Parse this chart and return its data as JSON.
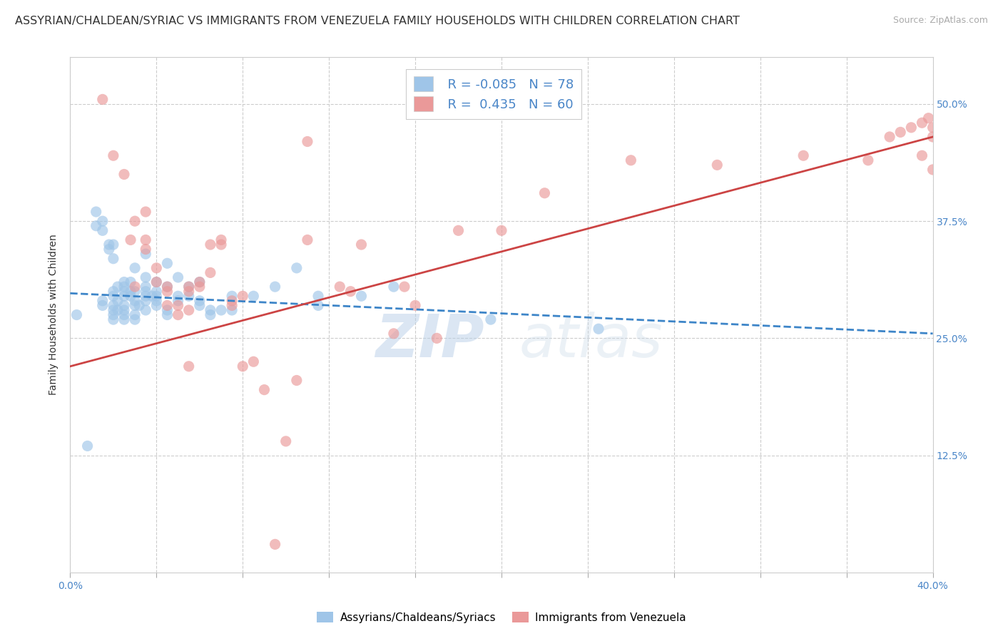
{
  "title": "ASSYRIAN/CHALDEAN/SYRIAC VS IMMIGRANTS FROM VENEZUELA FAMILY HOUSEHOLDS WITH CHILDREN CORRELATION CHART",
  "source": "Source: ZipAtlas.com",
  "ylabel": "Family Households with Children",
  "legend_blue_r": "R = -0.085",
  "legend_blue_n": "N = 78",
  "legend_pink_r": "R =  0.435",
  "legend_pink_n": "N = 60",
  "blue_color": "#9fc5e8",
  "pink_color": "#ea9999",
  "blue_line_color": "#3d85c8",
  "pink_line_color": "#cc4444",
  "watermark": "ZIPatlas",
  "blue_scatter": [
    [
      0.3,
      27.5
    ],
    [
      0.8,
      13.5
    ],
    [
      1.2,
      38.5
    ],
    [
      1.2,
      37.0
    ],
    [
      1.5,
      29.0
    ],
    [
      1.5,
      37.5
    ],
    [
      1.5,
      36.5
    ],
    [
      1.5,
      28.5
    ],
    [
      1.8,
      35.0
    ],
    [
      1.8,
      34.5
    ],
    [
      2.0,
      35.0
    ],
    [
      2.0,
      33.5
    ],
    [
      2.0,
      30.0
    ],
    [
      2.0,
      29.5
    ],
    [
      2.0,
      28.5
    ],
    [
      2.0,
      28.0
    ],
    [
      2.0,
      27.5
    ],
    [
      2.0,
      27.0
    ],
    [
      2.2,
      30.5
    ],
    [
      2.2,
      29.0
    ],
    [
      2.2,
      28.0
    ],
    [
      2.5,
      31.0
    ],
    [
      2.5,
      30.5
    ],
    [
      2.5,
      30.0
    ],
    [
      2.5,
      29.5
    ],
    [
      2.5,
      28.5
    ],
    [
      2.5,
      28.0
    ],
    [
      2.5,
      27.5
    ],
    [
      2.5,
      27.0
    ],
    [
      2.8,
      31.0
    ],
    [
      2.8,
      30.0
    ],
    [
      2.8,
      29.5
    ],
    [
      3.0,
      32.5
    ],
    [
      3.0,
      30.0
    ],
    [
      3.0,
      29.0
    ],
    [
      3.0,
      28.5
    ],
    [
      3.0,
      27.5
    ],
    [
      3.0,
      27.0
    ],
    [
      3.2,
      28.5
    ],
    [
      3.5,
      34.0
    ],
    [
      3.5,
      31.5
    ],
    [
      3.5,
      30.5
    ],
    [
      3.5,
      30.0
    ],
    [
      3.5,
      29.5
    ],
    [
      3.5,
      29.0
    ],
    [
      3.5,
      28.0
    ],
    [
      3.8,
      29.5
    ],
    [
      4.0,
      31.0
    ],
    [
      4.0,
      30.0
    ],
    [
      4.0,
      29.5
    ],
    [
      4.0,
      29.0
    ],
    [
      4.0,
      28.5
    ],
    [
      4.5,
      33.0
    ],
    [
      4.5,
      30.5
    ],
    [
      4.5,
      28.0
    ],
    [
      4.5,
      27.5
    ],
    [
      5.0,
      31.5
    ],
    [
      5.0,
      29.5
    ],
    [
      5.0,
      29.0
    ],
    [
      5.5,
      30.5
    ],
    [
      5.5,
      29.5
    ],
    [
      6.0,
      31.0
    ],
    [
      6.0,
      29.0
    ],
    [
      6.0,
      28.5
    ],
    [
      6.5,
      28.0
    ],
    [
      6.5,
      27.5
    ],
    [
      7.0,
      28.0
    ],
    [
      7.5,
      29.5
    ],
    [
      7.5,
      28.0
    ],
    [
      8.5,
      29.5
    ],
    [
      9.5,
      30.5
    ],
    [
      10.5,
      32.5
    ],
    [
      11.5,
      29.5
    ],
    [
      11.5,
      28.5
    ],
    [
      13.5,
      29.5
    ],
    [
      15.0,
      30.5
    ],
    [
      19.5,
      27.0
    ],
    [
      24.5,
      26.0
    ]
  ],
  "pink_scatter": [
    [
      1.5,
      50.5
    ],
    [
      2.0,
      44.5
    ],
    [
      2.5,
      42.5
    ],
    [
      2.8,
      35.5
    ],
    [
      3.0,
      37.5
    ],
    [
      3.0,
      30.5
    ],
    [
      3.5,
      38.5
    ],
    [
      3.5,
      35.5
    ],
    [
      3.5,
      34.5
    ],
    [
      4.0,
      32.5
    ],
    [
      4.0,
      31.0
    ],
    [
      4.5,
      30.5
    ],
    [
      4.5,
      30.0
    ],
    [
      4.5,
      28.5
    ],
    [
      5.0,
      28.5
    ],
    [
      5.0,
      27.5
    ],
    [
      5.5,
      30.0
    ],
    [
      5.5,
      30.5
    ],
    [
      5.5,
      28.0
    ],
    [
      5.5,
      22.0
    ],
    [
      6.0,
      30.5
    ],
    [
      6.0,
      31.0
    ],
    [
      6.5,
      35.0
    ],
    [
      6.5,
      32.0
    ],
    [
      7.0,
      35.5
    ],
    [
      7.0,
      35.0
    ],
    [
      7.5,
      29.0
    ],
    [
      7.5,
      28.5
    ],
    [
      8.0,
      29.5
    ],
    [
      8.0,
      22.0
    ],
    [
      8.5,
      22.5
    ],
    [
      9.0,
      19.5
    ],
    [
      9.5,
      3.0
    ],
    [
      10.0,
      14.0
    ],
    [
      10.5,
      20.5
    ],
    [
      11.0,
      35.5
    ],
    [
      11.0,
      46.0
    ],
    [
      12.5,
      30.5
    ],
    [
      13.0,
      30.0
    ],
    [
      13.5,
      35.0
    ],
    [
      15.0,
      25.5
    ],
    [
      15.5,
      30.5
    ],
    [
      16.0,
      28.5
    ],
    [
      17.0,
      25.0
    ],
    [
      18.0,
      36.5
    ],
    [
      20.0,
      36.5
    ],
    [
      22.0,
      40.5
    ],
    [
      26.0,
      44.0
    ],
    [
      30.0,
      43.5
    ],
    [
      34.0,
      44.5
    ],
    [
      37.0,
      44.0
    ],
    [
      38.0,
      46.5
    ],
    [
      38.5,
      47.0
    ],
    [
      39.0,
      47.5
    ],
    [
      39.5,
      48.0
    ],
    [
      39.5,
      44.5
    ],
    [
      39.8,
      48.5
    ],
    [
      40.0,
      47.5
    ],
    [
      40.0,
      43.0
    ],
    [
      40.0,
      46.5
    ]
  ],
  "blue_line_x": [
    0,
    40
  ],
  "blue_line_y": [
    29.8,
    25.5
  ],
  "pink_line_x": [
    0,
    40
  ],
  "pink_line_y": [
    22.0,
    46.5
  ],
  "xlim": [
    0,
    40
  ],
  "ylim": [
    0,
    55
  ],
  "xtick_vals": [
    0,
    4,
    8,
    12,
    16,
    20,
    24,
    28,
    32,
    36,
    40
  ],
  "ytick_vals": [
    12.5,
    25.0,
    37.5,
    50.0
  ],
  "background_color": "#ffffff",
  "grid_color": "#cccccc",
  "title_fontsize": 11.5,
  "axis_label_fontsize": 10,
  "tick_fontsize": 10,
  "scatter_size": 120,
  "scatter_alpha": 0.65
}
